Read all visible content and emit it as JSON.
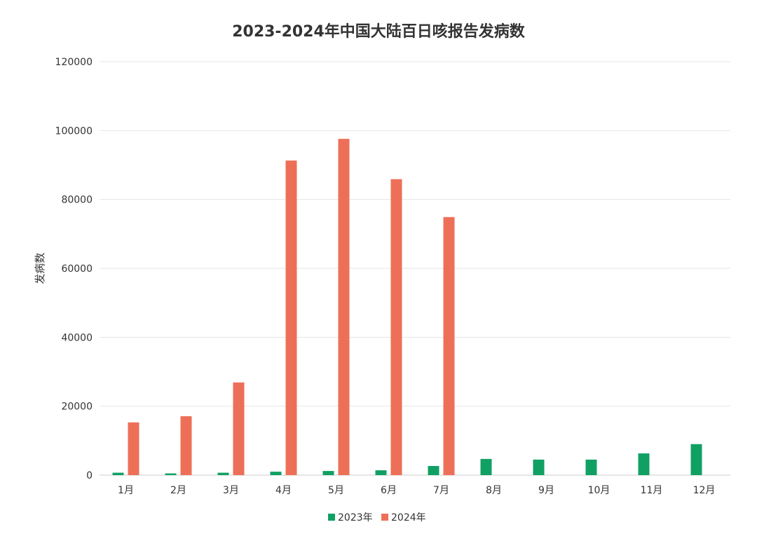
{
  "chart_data": {
    "type": "bar",
    "title": "2023-2024年中国大陆百日咳报告发病数",
    "xlabel": "",
    "ylabel": "发病数",
    "ylim": [
      0,
      120000
    ],
    "yticks": [
      0,
      20000,
      40000,
      60000,
      80000,
      100000,
      120000
    ],
    "grid": true,
    "legend_placement": "bottom",
    "categories": [
      "1月",
      "2月",
      "3月",
      "4月",
      "5月",
      "6月",
      "7月",
      "8月",
      "9月",
      "10月",
      "11月",
      "12月"
    ],
    "series": [
      {
        "name": "2023年",
        "color": "#10a063",
        "values": [
          700,
          500,
          700,
          1000,
          1200,
          1400,
          2650,
          4700,
          4500,
          4500,
          6300,
          9000
        ]
      },
      {
        "name": "2024年",
        "color": "#ee6f58",
        "values": [
          15300,
          17100,
          26900,
          91300,
          97600,
          85900,
          74900,
          null,
          null,
          null,
          null,
          null
        ]
      }
    ]
  }
}
